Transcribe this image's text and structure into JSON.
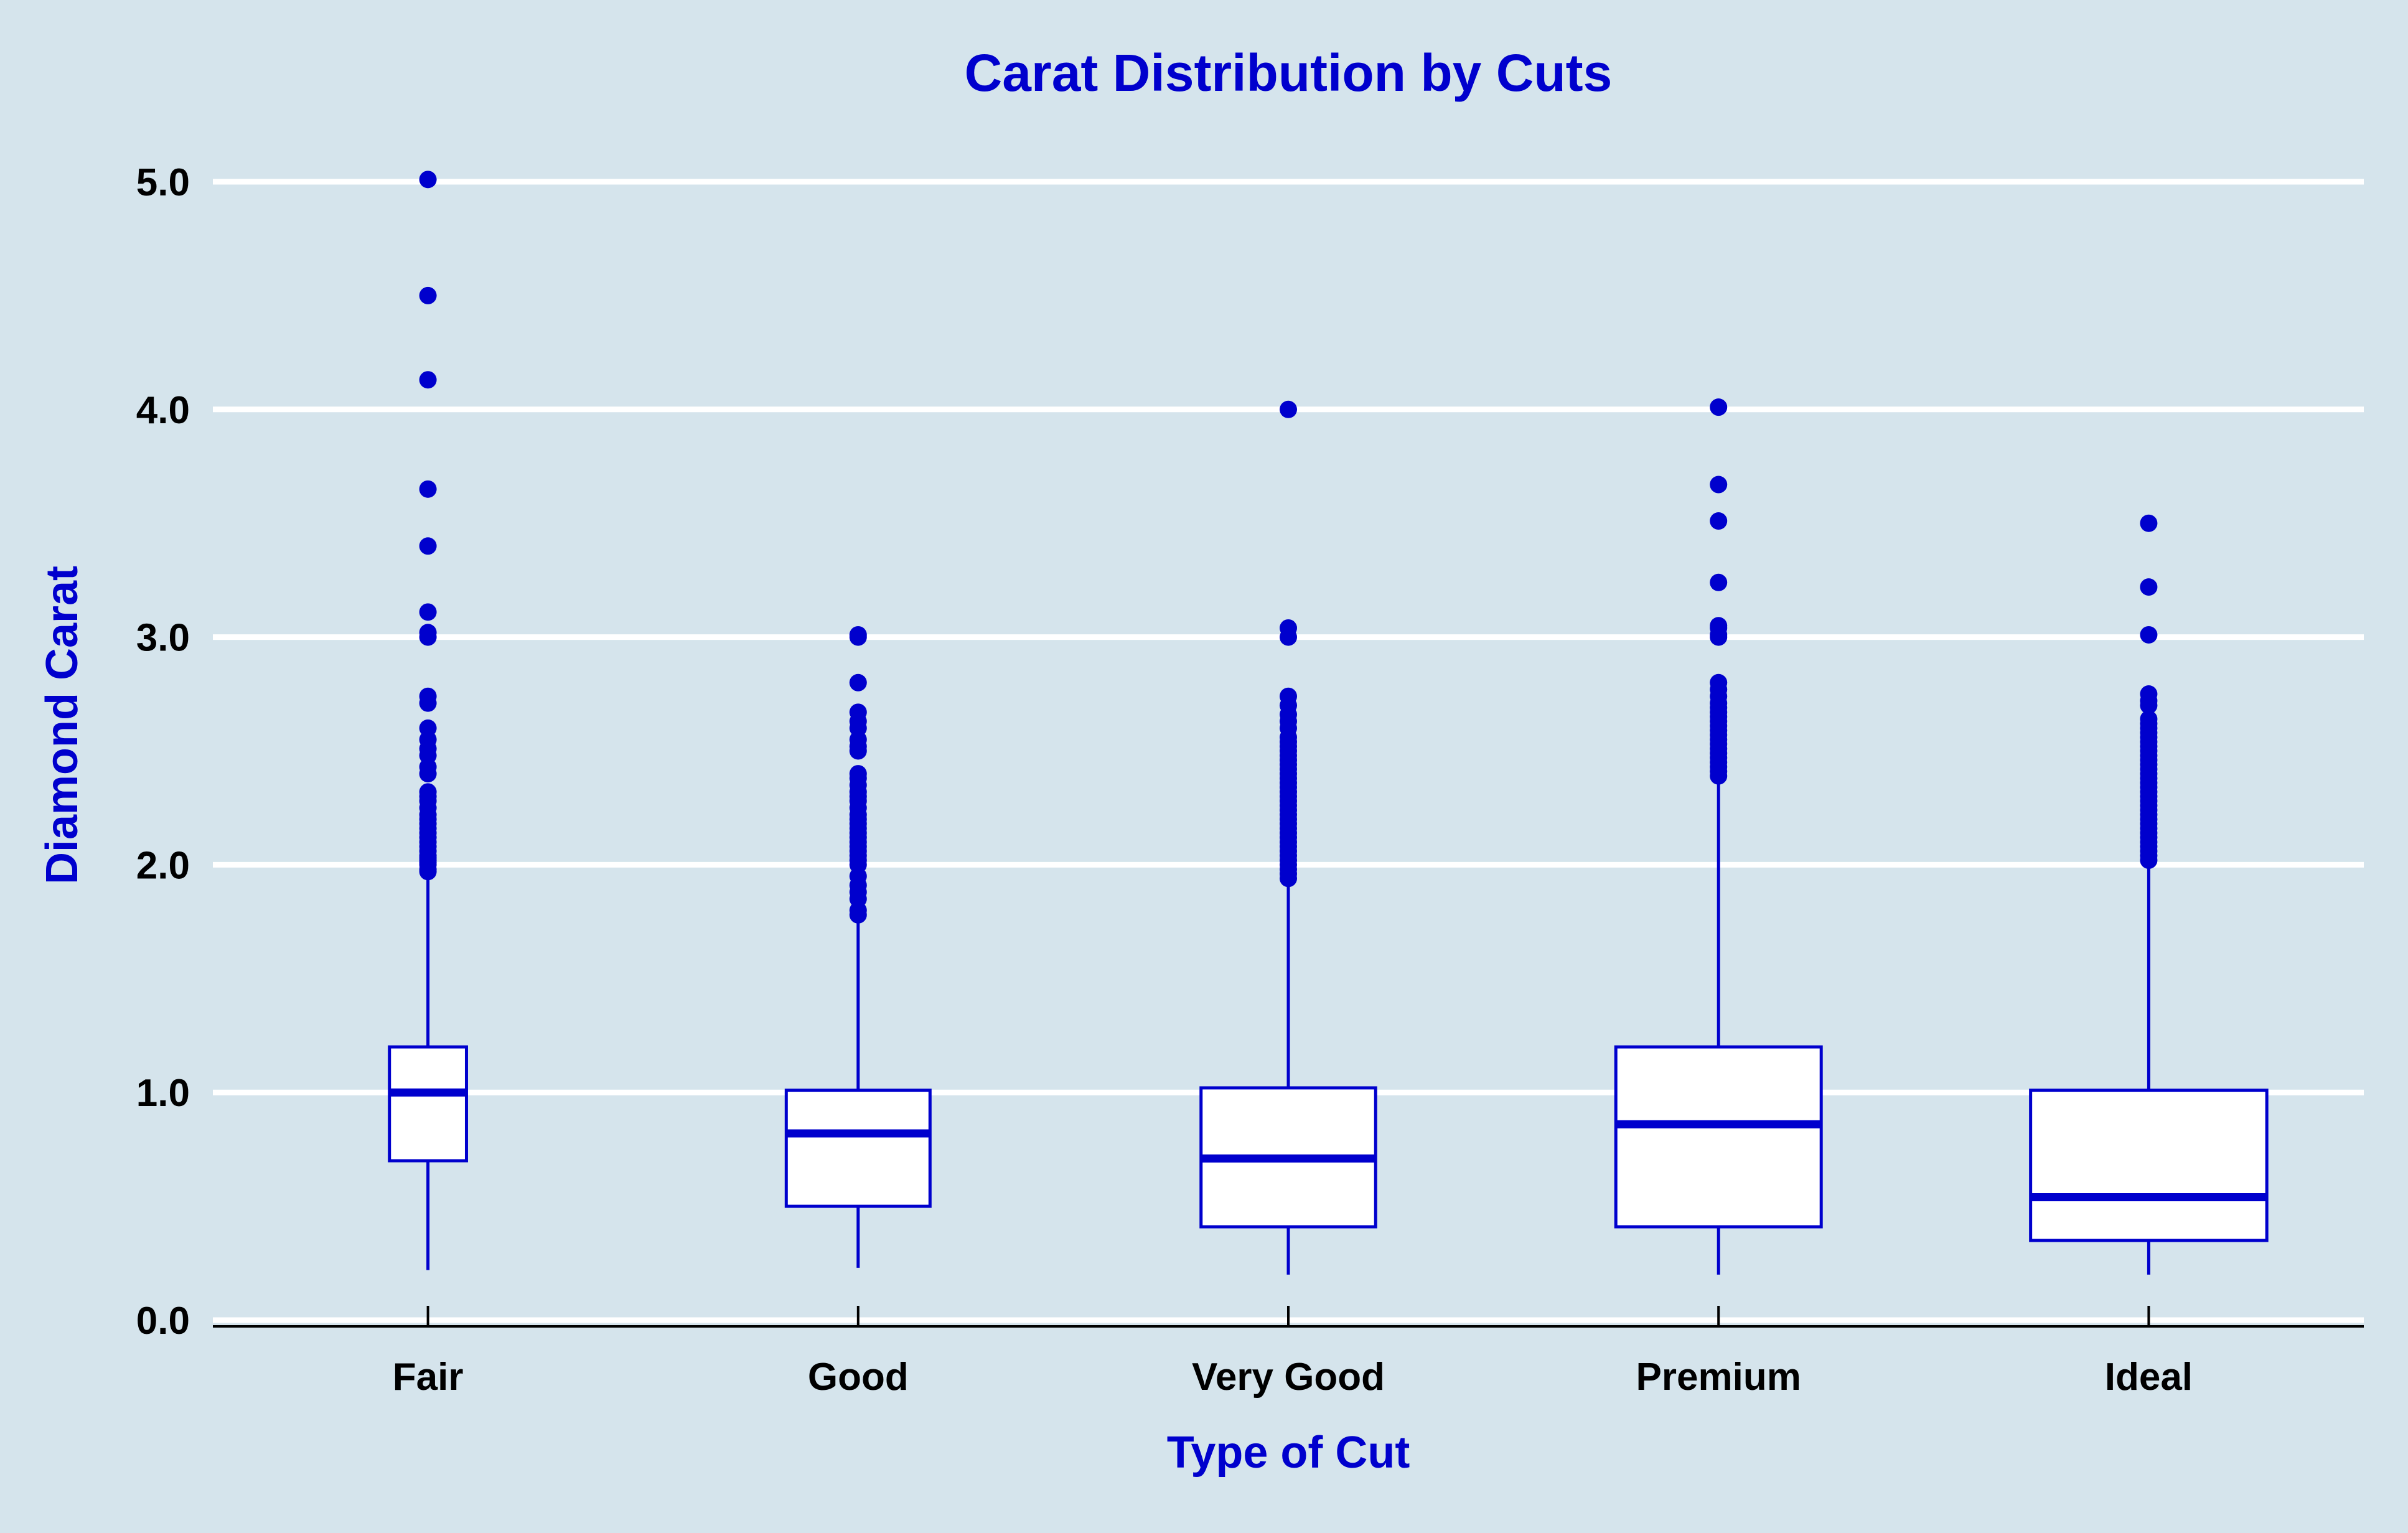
{
  "colors": {
    "background": "#d5e4ec",
    "accent": "#0000cd",
    "gridline": "#ffffff",
    "box_fill": "#ffffff",
    "axis": "#000000"
  },
  "chart_data": {
    "type": "box",
    "title": "Carat Distribution by Cuts",
    "xlabel": "Type of Cut",
    "ylabel": "Diamond Carat",
    "ylim": [
      0,
      5.15
    ],
    "yticks": [
      "0.0",
      "1.0",
      "2.0",
      "3.0",
      "4.0",
      "5.0"
    ],
    "grid": true,
    "legend": "none",
    "categories": [
      "Fair",
      "Good",
      "Very Good",
      "Premium",
      "Ideal"
    ],
    "box_widths": [
      0.75,
      1.4,
      1.7,
      2.0,
      2.3
    ],
    "boxes": [
      {
        "category": "Fair",
        "min": 0.22,
        "q1": 0.7,
        "median": 1.0,
        "q3": 1.2,
        "max": 1.95,
        "outliers": [
          1.97,
          1.98,
          2.0,
          2.01,
          2.02,
          2.03,
          2.04,
          2.06,
          2.08,
          2.1,
          2.12,
          2.14,
          2.16,
          2.18,
          2.2,
          2.22,
          2.25,
          2.28,
          2.3,
          2.32,
          2.4,
          2.43,
          2.48,
          2.51,
          2.55,
          2.6,
          2.71,
          2.74,
          3.0,
          3.02,
          3.11,
          3.4,
          3.65,
          4.13,
          4.5,
          5.01
        ]
      },
      {
        "category": "Good",
        "min": 0.23,
        "q1": 0.5,
        "median": 0.82,
        "q3": 1.01,
        "max": 1.76,
        "outliers": [
          1.78,
          1.8,
          1.85,
          1.88,
          1.91,
          1.95,
          2.0,
          2.02,
          2.04,
          2.06,
          2.08,
          2.1,
          2.12,
          2.14,
          2.16,
          2.18,
          2.2,
          2.22,
          2.25,
          2.28,
          2.3,
          2.32,
          2.35,
          2.38,
          2.4,
          2.5,
          2.52,
          2.55,
          2.6,
          2.63,
          2.67,
          2.8,
          3.0,
          3.01
        ]
      },
      {
        "category": "Very Good",
        "min": 0.2,
        "q1": 0.41,
        "median": 0.71,
        "q3": 1.02,
        "max": 1.93,
        "outliers": [
          1.94,
          1.96,
          1.98,
          2.0,
          2.02,
          2.04,
          2.06,
          2.08,
          2.1,
          2.12,
          2.14,
          2.16,
          2.18,
          2.2,
          2.22,
          2.24,
          2.26,
          2.28,
          2.3,
          2.32,
          2.34,
          2.36,
          2.38,
          2.4,
          2.42,
          2.44,
          2.46,
          2.48,
          2.5,
          2.52,
          2.54,
          2.56,
          2.6,
          2.63,
          2.66,
          2.7,
          2.74,
          3.0,
          3.04,
          4.0
        ]
      },
      {
        "category": "Premium",
        "min": 0.2,
        "q1": 0.41,
        "median": 0.86,
        "q3": 1.2,
        "max": 2.38,
        "outliers": [
          2.39,
          2.41,
          2.43,
          2.45,
          2.47,
          2.49,
          2.51,
          2.53,
          2.55,
          2.57,
          2.59,
          2.61,
          2.63,
          2.65,
          2.67,
          2.69,
          2.71,
          2.74,
          2.77,
          2.8,
          3.0,
          3.01,
          3.04,
          3.05,
          3.24,
          3.51,
          3.67,
          4.01
        ]
      },
      {
        "category": "Ideal",
        "min": 0.2,
        "q1": 0.35,
        "median": 0.54,
        "q3": 1.01,
        "max": 2.01,
        "outliers": [
          2.02,
          2.04,
          2.06,
          2.08,
          2.1,
          2.12,
          2.14,
          2.16,
          2.18,
          2.2,
          2.22,
          2.24,
          2.26,
          2.28,
          2.3,
          2.32,
          2.34,
          2.36,
          2.38,
          2.4,
          2.42,
          2.44,
          2.46,
          2.48,
          2.5,
          2.52,
          2.54,
          2.56,
          2.58,
          2.6,
          2.62,
          2.64,
          2.7,
          2.72,
          2.75,
          3.01,
          3.22,
          3.5
        ]
      }
    ]
  }
}
